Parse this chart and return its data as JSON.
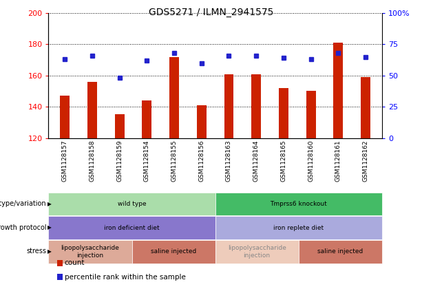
{
  "title": "GDS5271 / ILMN_2941575",
  "samples": [
    "GSM1128157",
    "GSM1128158",
    "GSM1128159",
    "GSM1128154",
    "GSM1128155",
    "GSM1128156",
    "GSM1128163",
    "GSM1128164",
    "GSM1128165",
    "GSM1128160",
    "GSM1128161",
    "GSM1128162"
  ],
  "counts": [
    147,
    156,
    135,
    144,
    172,
    141,
    161,
    161,
    152,
    150,
    181,
    159
  ],
  "percentiles": [
    63,
    66,
    48,
    62,
    68,
    60,
    66,
    66,
    64,
    63,
    68,
    65
  ],
  "ymin": 120,
  "ymax": 200,
  "yticks_left": [
    120,
    140,
    160,
    180,
    200
  ],
  "right_ticks": [
    0,
    25,
    50,
    75,
    100
  ],
  "right_tick_labels": [
    "0",
    "25",
    "50",
    "75",
    "100%"
  ],
  "bar_color": "#CC2200",
  "dot_color": "#2222CC",
  "annotation_rows": [
    {
      "label": "genotype/variation",
      "cells": [
        {
          "text": "wild type",
          "span": 6,
          "color": "#AADDAA",
          "text_color": "#000000"
        },
        {
          "text": "Tmprss6 knockout",
          "span": 6,
          "color": "#44BB66",
          "text_color": "#000000"
        }
      ]
    },
    {
      "label": "growth protocol",
      "cells": [
        {
          "text": "iron deficient diet",
          "span": 6,
          "color": "#8877CC",
          "text_color": "#000000"
        },
        {
          "text": "iron replete diet",
          "span": 6,
          "color": "#AAAADD",
          "text_color": "#000000"
        }
      ]
    },
    {
      "label": "stress",
      "cells": [
        {
          "text": "lipopolysaccharide\ninjection",
          "span": 3,
          "color": "#DDAA99",
          "text_color": "#000000"
        },
        {
          "text": "saline injected",
          "span": 3,
          "color": "#CC7766",
          "text_color": "#000000"
        },
        {
          "text": "lipopolysaccharide\ninjection",
          "span": 3,
          "color": "#EECCBB",
          "text_color": "#888888"
        },
        {
          "text": "saline injected",
          "span": 3,
          "color": "#CC7766",
          "text_color": "#000000"
        }
      ]
    }
  ],
  "legend_items": [
    {
      "color": "#CC2200",
      "label": "count"
    },
    {
      "color": "#2222CC",
      "label": "percentile rank within the sample"
    }
  ]
}
